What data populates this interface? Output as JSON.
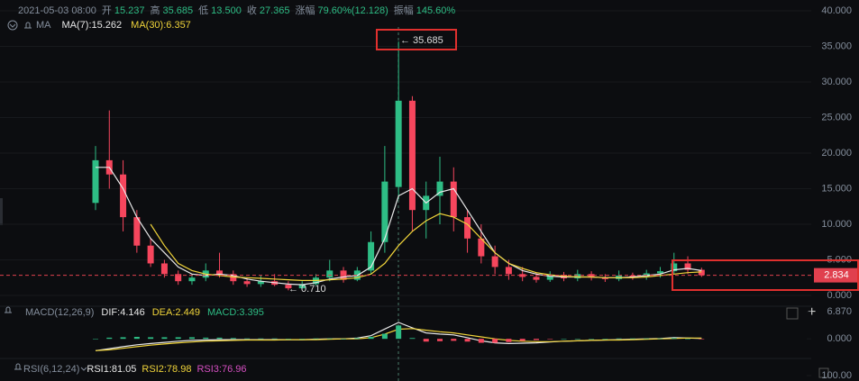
{
  "chart_data": [
    {
      "type": "candlestick",
      "title": "2021-05-03 08:00",
      "info": [
        {
          "label": "开",
          "value": "15.237"
        },
        {
          "label": "高",
          "value": "35.685"
        },
        {
          "label": "低",
          "value": "13.500"
        },
        {
          "label": "收",
          "value": "27.365"
        },
        {
          "label": "涨幅",
          "value": "79.60%(12.128)"
        },
        {
          "label": "振幅",
          "value": "145.60%"
        }
      ],
      "legend_label": "MA",
      "categories": [
        null,
        null,
        null,
        null,
        null,
        null,
        null,
        null,
        null,
        null,
        null,
        null,
        null,
        null,
        null,
        null,
        null,
        null,
        null,
        null,
        null,
        null,
        null,
        null,
        null,
        null,
        null,
        null,
        null,
        null,
        null,
        null,
        null,
        null,
        null,
        null,
        null,
        null,
        null,
        null,
        null,
        null,
        null,
        null,
        null
      ],
      "candles": {
        "up_color": "#2ebd85",
        "down_color": "#f6465d",
        "open": [
          13,
          19,
          17,
          11,
          7,
          4.5,
          3,
          2,
          2.5,
          3.5,
          3,
          2,
          1.6,
          2,
          1.5,
          1,
          1.6,
          2.5,
          3.5,
          2.2,
          3.5,
          7.5,
          15.237,
          27.365,
          12,
          14,
          16,
          11,
          8,
          5.5,
          4,
          3,
          2.6,
          2.2,
          2.9,
          2.4,
          3,
          2.5,
          2.3,
          2.8,
          2.6,
          3.1,
          3.4,
          4.5,
          3.6
        ],
        "high": [
          21,
          26,
          19,
          12,
          8,
          5,
          3.5,
          3,
          4.5,
          6,
          3.5,
          2.5,
          2.8,
          3,
          2,
          2,
          3,
          5,
          4,
          4,
          9,
          21,
          35.685,
          28,
          16,
          19.5,
          18,
          12,
          10,
          7,
          5,
          4,
          3.2,
          3.4,
          3.3,
          3.6,
          3.4,
          3,
          3.5,
          3.2,
          3.6,
          4,
          6,
          5.5,
          3.9
        ],
        "low": [
          12,
          15,
          9,
          6,
          4,
          2.5,
          1.5,
          1.5,
          2,
          2.5,
          1.5,
          1.2,
          1.2,
          1.3,
          0.71,
          0.9,
          1.4,
          2,
          1.8,
          2,
          3,
          6,
          13.5,
          9,
          8,
          10,
          9,
          6,
          4.5,
          3,
          2.2,
          2,
          1.8,
          1.9,
          2,
          2,
          2.1,
          1.9,
          2,
          2.2,
          2.2,
          2.5,
          3,
          3,
          2.6
        ],
        "close": [
          19,
          17,
          11,
          7,
          4.5,
          3,
          2,
          2.5,
          3.5,
          3,
          2,
          1.6,
          2,
          1.5,
          1,
          1.6,
          2.5,
          3.5,
          2.2,
          3.5,
          7.5,
          16,
          27.365,
          12,
          14,
          16,
          11,
          8,
          5.5,
          4,
          3,
          2.6,
          2.2,
          2.9,
          2.4,
          3,
          2.5,
          2.3,
          2.8,
          2.6,
          3.1,
          3.4,
          4.5,
          3.6,
          2.834
        ]
      },
      "series": [
        {
          "name": "MA(7):15.262",
          "color": "#e8e8e8",
          "values": [
            18,
            18,
            15,
            11,
            8,
            6,
            4,
            3,
            2.8,
            3,
            2.8,
            2.3,
            2,
            1.8,
            1.6,
            1.5,
            1.8,
            2.3,
            2.6,
            2.8,
            4,
            8,
            14,
            15,
            13,
            14.5,
            15,
            12,
            9,
            6,
            4.5,
            3.5,
            3,
            2.7,
            2.6,
            2.6,
            2.6,
            2.5,
            2.5,
            2.6,
            2.8,
            3,
            3.6,
            3.8,
            3.5
          ]
        },
        {
          "name": "MA(30):6.357",
          "color": "#f0d43a",
          "values": [
            null,
            null,
            null,
            null,
            10,
            7,
            4.5,
            3.5,
            3,
            2.8,
            2.6,
            2.5,
            2.4,
            2.3,
            2.2,
            2.1,
            2.1,
            2.2,
            2.3,
            2.5,
            3,
            4.5,
            7,
            9,
            10.5,
            11.5,
            11,
            10,
            8,
            6,
            4.5,
            3.8,
            3.2,
            2.9,
            2.7,
            2.6,
            2.6,
            2.5,
            2.5,
            2.5,
            2.6,
            2.8,
            3,
            3.2,
            3.3
          ]
        }
      ],
      "annotations": [
        {
          "text": "← 35.685"
        },
        {
          "text": "← 0.710"
        }
      ],
      "last_price": 2.834,
      "last_color": "#e0404e",
      "ylim": [
        0,
        40
      ],
      "yticks": [
        {
          "value": 0,
          "label": "0.000"
        },
        {
          "value": 5,
          "label": "5.000"
        },
        {
          "value": 10,
          "label": "10.000"
        },
        {
          "value": 15,
          "label": "15.000"
        },
        {
          "value": 20,
          "label": "20.000"
        },
        {
          "value": 25,
          "label": "25.000"
        },
        {
          "value": 30,
          "label": "30.000"
        },
        {
          "value": 35,
          "label": "35.000"
        },
        {
          "value": 40,
          "label": "40.000"
        }
      ],
      "grid": true
    },
    {
      "type": "macd",
      "title": "MACD(12,26,9)",
      "series": [
        {
          "name": "DIF:4.146",
          "color": "#e8e8e8",
          "values": [
            -3,
            -2.5,
            -2,
            -1.5,
            -1.2,
            -0.9,
            -0.6,
            -0.4,
            -0.3,
            -0.2,
            -0.2,
            -0.2,
            -0.2,
            -0.2,
            -0.2,
            -0.2,
            -0.1,
            0,
            0,
            0.2,
            0.8,
            2.5,
            4.146,
            2.8,
            1.5,
            1.2,
            1,
            0.3,
            -0.5,
            -1,
            -1.2,
            -1.1,
            -1,
            -0.8,
            -0.6,
            -0.5,
            -0.4,
            -0.3,
            -0.2,
            -0.1,
            0,
            0.1,
            0.3,
            0.2,
            0.1
          ]
        },
        {
          "name": "DEA:2.449",
          "color": "#f0d43a",
          "values": [
            -3,
            -2.8,
            -2.4,
            -2,
            -1.6,
            -1.3,
            -1,
            -0.8,
            -0.6,
            -0.5,
            -0.4,
            -0.3,
            -0.3,
            -0.3,
            -0.2,
            -0.2,
            -0.2,
            -0.1,
            0,
            0,
            0.3,
            1.2,
            2.449,
            2.6,
            2.2,
            1.8,
            1.5,
            1,
            0.5,
            0,
            -0.4,
            -0.6,
            -0.7,
            -0.7,
            -0.6,
            -0.5,
            -0.4,
            -0.3,
            -0.3,
            -0.2,
            -0.1,
            0,
            0.1,
            0.2,
            0.2
          ]
        },
        {
          "name": "MACD:3.395",
          "color": "#2ebd85",
          "neg_color": "#f6465d",
          "bars": true,
          "values": [
            0,
            0.3,
            0.4,
            0.5,
            0.4,
            0.4,
            0.4,
            0.4,
            0.3,
            0.3,
            0.2,
            0.1,
            0.1,
            0.1,
            0,
            0,
            0.1,
            0.1,
            0,
            0.2,
            0.5,
            1.3,
            3.395,
            0.2,
            -0.7,
            -0.6,
            -0.5,
            -0.7,
            -1,
            -1,
            -0.8,
            -0.5,
            -0.3,
            -0.1,
            0,
            0,
            0,
            0,
            0.1,
            0.1,
            0.1,
            0.1,
            0.2,
            0,
            -0.1
          ]
        }
      ],
      "ylim": [
        -4.3,
        8.5
      ],
      "yticks": [
        {
          "value": 0,
          "label": "0.000"
        },
        {
          "value": 6.87,
          "label": "6.870"
        }
      ]
    },
    {
      "type": "rsi",
      "title": "RSI(6,12,24)",
      "series": [
        {
          "name": "RSI1:81.05",
          "color": "#e8e8e8"
        },
        {
          "name": "RSI2:78.98",
          "color": "#f0d43a"
        },
        {
          "name": "RSI3:76.96",
          "color": "#d64fc2"
        }
      ],
      "ylim": [
        0,
        100
      ],
      "yticks": [
        {
          "value": 100,
          "label": "100.00"
        }
      ]
    }
  ]
}
